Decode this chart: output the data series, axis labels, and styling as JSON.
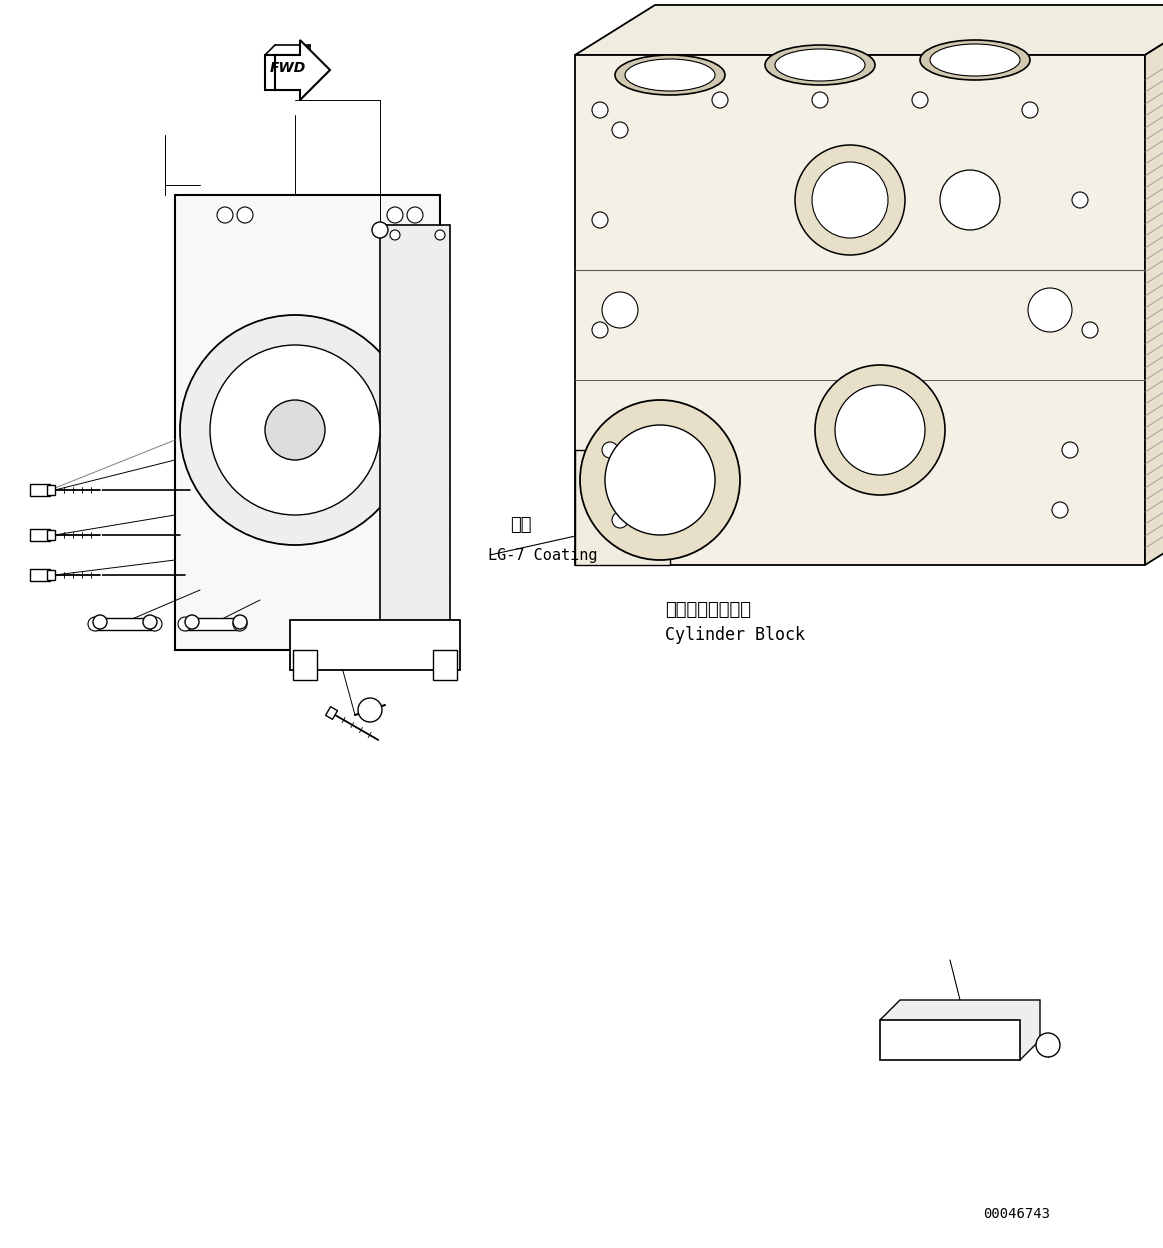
{
  "bg_color": "#ffffff",
  "line_color": "#000000",
  "fig_width": 11.63,
  "fig_height": 12.48,
  "dpi": 100,
  "part_number": "00046743",
  "label_coating_jp": "塗布",
  "label_coating_en": "LG-7 Coating",
  "label_block_jp": "シリンダブロック",
  "label_block_en": "Cylinder Block"
}
